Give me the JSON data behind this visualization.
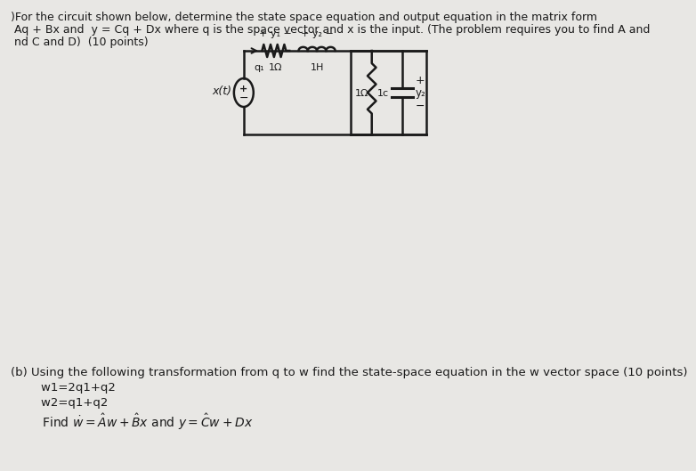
{
  "page_bg": "#e8e7e4",
  "text_color": "#1a1a1a",
  "line1": ")For the circuit shown below, determine the state space equation and output equation in the matrix form",
  "line2": " Aq + Bx and  y = Cq + Dx where q is the space vector and x is the input. (The problem requires you to find A and",
  "line3": " nd C and D)  (10 points)",
  "part_b_line1": "(b) Using the following transformation from q to w find the state-space equation in the w vector space (10 points)",
  "part_b_line2": "        w1=2q1+q2",
  "part_b_line3": "        w2=q1+q2",
  "part_b_line4": "        Find $\\dot{w} = \\hat{A}w + \\hat{B}x$ and $y = \\hat{C}w + Dx$",
  "font_size_main": 9.0,
  "font_size_partb": 9.5,
  "circ_color": "#1a1a1a"
}
